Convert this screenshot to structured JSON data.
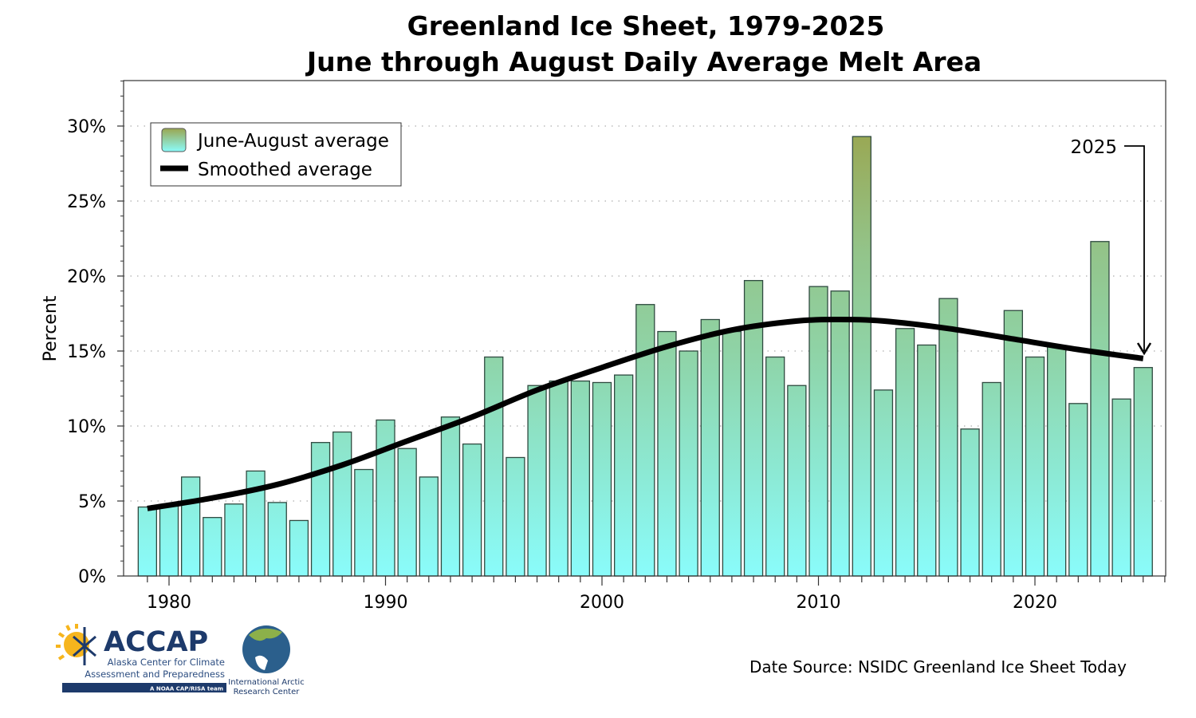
{
  "chart_data": {
    "type": "bar",
    "title": "Greenland Ice Sheet, 1979-2025",
    "subtitle": "June through August Daily Average Melt Area",
    "xlabel": "",
    "ylabel": "Percent",
    "ylim": [
      0,
      33
    ],
    "xlim": [
      1978,
      2026
    ],
    "yticks": [
      0,
      5,
      10,
      15,
      20,
      25,
      30
    ],
    "ytick_labels": [
      "0%",
      "5%",
      "10%",
      "15%",
      "20%",
      "25%",
      "30%"
    ],
    "xticks": [
      1980,
      1990,
      2000,
      2010,
      2020
    ],
    "xtick_labels": [
      "1980",
      "1990",
      "2000",
      "2010",
      "2020"
    ],
    "grid": "horizontal dotted",
    "legend_position": "top-left",
    "legend": [
      "June-August average",
      "Smoothed average"
    ],
    "years": [
      1979,
      1980,
      1981,
      1982,
      1983,
      1984,
      1985,
      1986,
      1987,
      1988,
      1989,
      1990,
      1991,
      1992,
      1993,
      1994,
      1995,
      1996,
      1997,
      1998,
      1999,
      2000,
      2001,
      2002,
      2003,
      2004,
      2005,
      2006,
      2007,
      2008,
      2009,
      2010,
      2011,
      2012,
      2013,
      2014,
      2015,
      2016,
      2017,
      2018,
      2019,
      2020,
      2021,
      2022,
      2023,
      2024,
      2025
    ],
    "series": [
      {
        "name": "June-August average",
        "type": "bar",
        "values": [
          4.6,
          4.7,
          6.6,
          3.9,
          4.8,
          7.0,
          4.9,
          3.7,
          8.9,
          9.6,
          7.1,
          10.4,
          8.5,
          6.6,
          10.6,
          8.8,
          14.6,
          7.9,
          12.7,
          13.0,
          13.0,
          12.9,
          13.4,
          18.1,
          16.3,
          15.0,
          17.1,
          16.3,
          19.7,
          14.6,
          12.7,
          19.3,
          19.0,
          29.3,
          12.4,
          16.5,
          15.4,
          18.5,
          9.8,
          12.9,
          17.7,
          14.6,
          15.3,
          11.5,
          22.3,
          11.8,
          13.9
        ]
      },
      {
        "name": "Smoothed average",
        "type": "line",
        "x": [
          1979,
          1982,
          1985,
          1988,
          1991,
          1994,
          1997,
          2000,
          2003,
          2006,
          2009,
          2011,
          2013,
          2016,
          2019,
          2022,
          2025
        ],
        "values": [
          4.5,
          5.2,
          6.1,
          7.4,
          9.0,
          10.6,
          12.4,
          13.9,
          15.3,
          16.4,
          17.0,
          17.1,
          17.0,
          16.5,
          15.8,
          15.1,
          14.5
        ]
      }
    ],
    "annotation": "2025",
    "colors": {
      "bar_low": "#8afcfb",
      "bar_mid": "#8fd3a6",
      "bar_high": "#9aa650",
      "line": "#000000"
    }
  },
  "footer": {
    "source": "Date Source: NSIDC Greenland Ice Sheet Today",
    "logo1_text": "ACCAP",
    "logo1_sub1": "Alaska Center for Climate",
    "logo1_sub2": "Assessment and Preparedness",
    "logo1_band": "A NOAA CAP/RISA team",
    "logo2_text1": "International Arctic",
    "logo2_text2": "Research Center"
  }
}
